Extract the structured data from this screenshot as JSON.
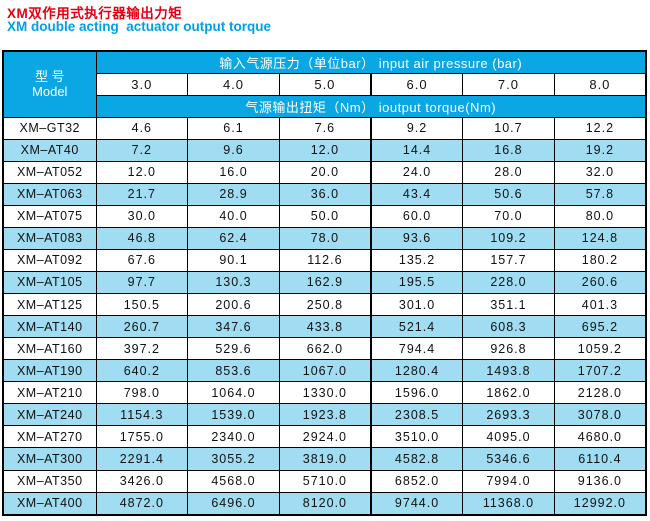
{
  "page": {
    "title_zh": "XM双作用式执行器输出力矩",
    "title_en": "XM double acting  actuator output torque"
  },
  "colors": {
    "title-red": "#e60012",
    "title-blue": "#00a0e9",
    "header-bg": "#0aa7e4",
    "stripe": "#a0ddf2",
    "border": "#000000"
  },
  "table": {
    "model_header_zh": "型 号",
    "model_header_en": "Model",
    "pressure_header": "输入气源压力（单位bar） input air pressure (bar)",
    "pressure_values": [
      "3.0",
      "4.0",
      "5.0",
      "6.0",
      "7.0",
      "8.0"
    ],
    "torque_header": "气源输出扭矩（Nm） ioutput torque(Nm)",
    "rows": [
      {
        "model": "XM–GT32",
        "values": [
          "4.6",
          "6.1",
          "7.6",
          "9.2",
          "10.7",
          "12.2"
        ]
      },
      {
        "model": "XM–AT40",
        "values": [
          "7.2",
          "9.6",
          "12.0",
          "14.4",
          "16.8",
          "19.2"
        ]
      },
      {
        "model": "XM–AT052",
        "values": [
          "12.0",
          "16.0",
          "20.0",
          "24.0",
          "28.0",
          "32.0"
        ]
      },
      {
        "model": "XM–AT063",
        "values": [
          "21.7",
          "28.9",
          "36.0",
          "43.4",
          "50.6",
          "57.8"
        ]
      },
      {
        "model": "XM–AT075",
        "values": [
          "30.0",
          "40.0",
          "50.0",
          "60.0",
          "70.0",
          "80.0"
        ]
      },
      {
        "model": "XM–AT083",
        "values": [
          "46.8",
          "62.4",
          "78.0",
          "93.6",
          "109.2",
          "124.8"
        ]
      },
      {
        "model": "XM–AT092",
        "values": [
          "67.6",
          "90.1",
          "112.6",
          "135.2",
          "157.7",
          "180.2"
        ]
      },
      {
        "model": "XM–AT105",
        "values": [
          "97.7",
          "130.3",
          "162.9",
          "195.5",
          "228.0",
          "260.6"
        ]
      },
      {
        "model": "XM–AT125",
        "values": [
          "150.5",
          "200.6",
          "250.8",
          "301.0",
          "351.1",
          "401.3"
        ]
      },
      {
        "model": "XM–AT140",
        "values": [
          "260.7",
          "347.6",
          "433.8",
          "521.4",
          "608.3",
          "695.2"
        ]
      },
      {
        "model": "XM–AT160",
        "values": [
          "397.2",
          "529.6",
          "662.0",
          "794.4",
          "926.8",
          "1059.2"
        ]
      },
      {
        "model": "XM–AT190",
        "values": [
          "640.2",
          "853.6",
          "1067.0",
          "1280.4",
          "1493.8",
          "1707.2"
        ]
      },
      {
        "model": "XM–AT210",
        "values": [
          "798.0",
          "1064.0",
          "1330.0",
          "1596.0",
          "1862.0",
          "2128.0"
        ]
      },
      {
        "model": "XM–AT240",
        "values": [
          "1154.3",
          "1539.0",
          "1923.8",
          "2308.5",
          "2693.3",
          "3078.0"
        ]
      },
      {
        "model": "XM–AT270",
        "values": [
          "1755.0",
          "2340.0",
          "2924.0",
          "3510.0",
          "4095.0",
          "4680.0"
        ]
      },
      {
        "model": "XM–AT300",
        "values": [
          "2291.4",
          "3055.2",
          "3819.0",
          "4582.8",
          "5346.6",
          "6110.4"
        ]
      },
      {
        "model": "XM–AT350",
        "values": [
          "3426.0",
          "4568.0",
          "5710.0",
          "6852.0",
          "7994.0",
          "9136.0"
        ]
      },
      {
        "model": "XM–AT400",
        "values": [
          "4872.0",
          "6496.0",
          "8120.0",
          "9744.0",
          "11368.0",
          "12992.0"
        ]
      }
    ]
  }
}
